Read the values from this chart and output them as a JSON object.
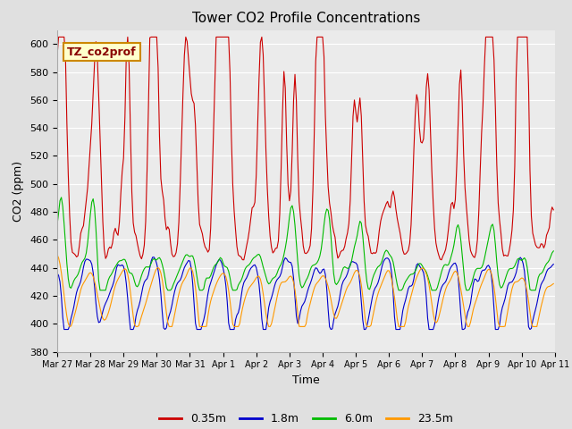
{
  "title": "Tower CO2 Profile Concentrations",
  "xlabel": "Time",
  "ylabel": "CO2 (ppm)",
  "ylim": [
    380,
    610
  ],
  "yticks": [
    380,
    400,
    420,
    440,
    460,
    480,
    500,
    520,
    540,
    560,
    580,
    600
  ],
  "series_labels": [
    "0.35m",
    "1.8m",
    "6.0m",
    "23.5m"
  ],
  "series_colors": [
    "#cc0000",
    "#0000cc",
    "#00bb00",
    "#ff9900"
  ],
  "background_color": "#e0e0e0",
  "plot_bg_color": "#ebebeb",
  "annotation_text": "TZ_co2prof",
  "annotation_bg": "#ffffcc",
  "annotation_border": "#cc8800",
  "xtick_labels": [
    "Mar 27",
    "Mar 28",
    "Mar 29",
    "Mar 30",
    "Mar 31",
    "Apr 1",
    "Apr 2",
    "Apr 3",
    "Apr 4",
    "Apr 5",
    "Apr 6",
    "Apr 7",
    "Apr 8",
    "Apr 9",
    "Apr 10",
    "Apr 11"
  ],
  "legend_colors": [
    "#cc0000",
    "#0000cc",
    "#00bb00",
    "#ff9900"
  ]
}
